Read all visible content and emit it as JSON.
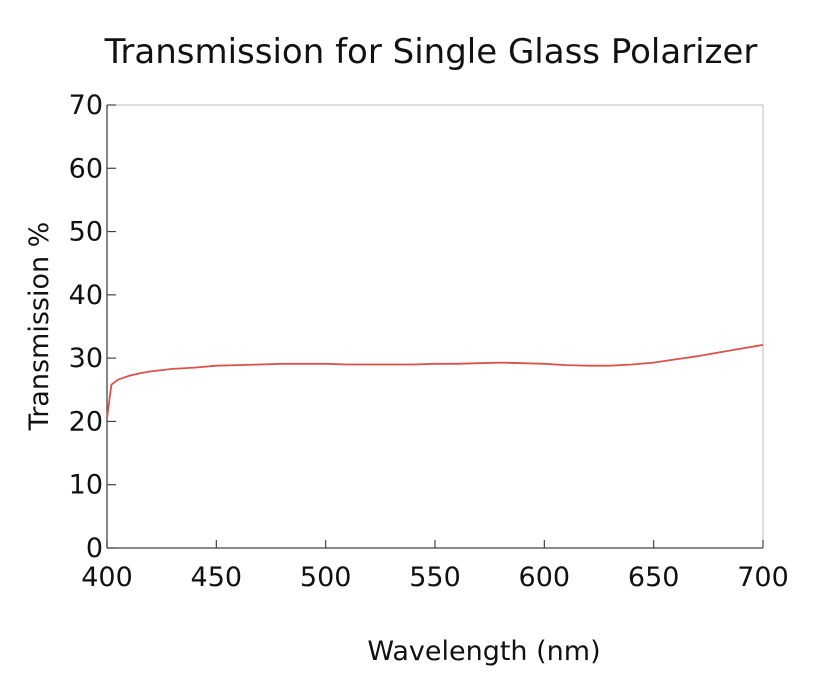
{
  "chart_data": {
    "type": "line",
    "title": "Transmission for Single Glass Polarizer",
    "xlabel": "Wavelength (nm)",
    "ylabel": "Transmission %",
    "xlim": [
      400,
      700
    ],
    "ylim": [
      0,
      70
    ],
    "xticks": [
      "400",
      "450",
      "500",
      "550",
      "600",
      "650",
      "700"
    ],
    "yticks": [
      "0",
      "10",
      "20",
      "30",
      "40",
      "50",
      "60",
      "70"
    ],
    "grid": false,
    "line_color": "#d9534a",
    "series": [
      {
        "x": [
          400,
          402,
          405,
          410,
          415,
          420,
          430,
          440,
          450,
          460,
          470,
          480,
          490,
          500,
          510,
          520,
          530,
          540,
          550,
          560,
          570,
          580,
          590,
          600,
          610,
          620,
          630,
          640,
          650,
          660,
          670,
          680,
          690,
          700
        ],
        "y": [
          20.5,
          25.8,
          26.6,
          27.2,
          27.6,
          27.9,
          28.3,
          28.5,
          28.8,
          28.9,
          29.0,
          29.1,
          29.1,
          29.1,
          29.0,
          29.0,
          29.0,
          29.0,
          29.1,
          29.1,
          29.2,
          29.3,
          29.2,
          29.1,
          28.9,
          28.8,
          28.8,
          29.0,
          29.3,
          29.8,
          30.3,
          30.9,
          31.5,
          32.1
        ]
      }
    ]
  }
}
